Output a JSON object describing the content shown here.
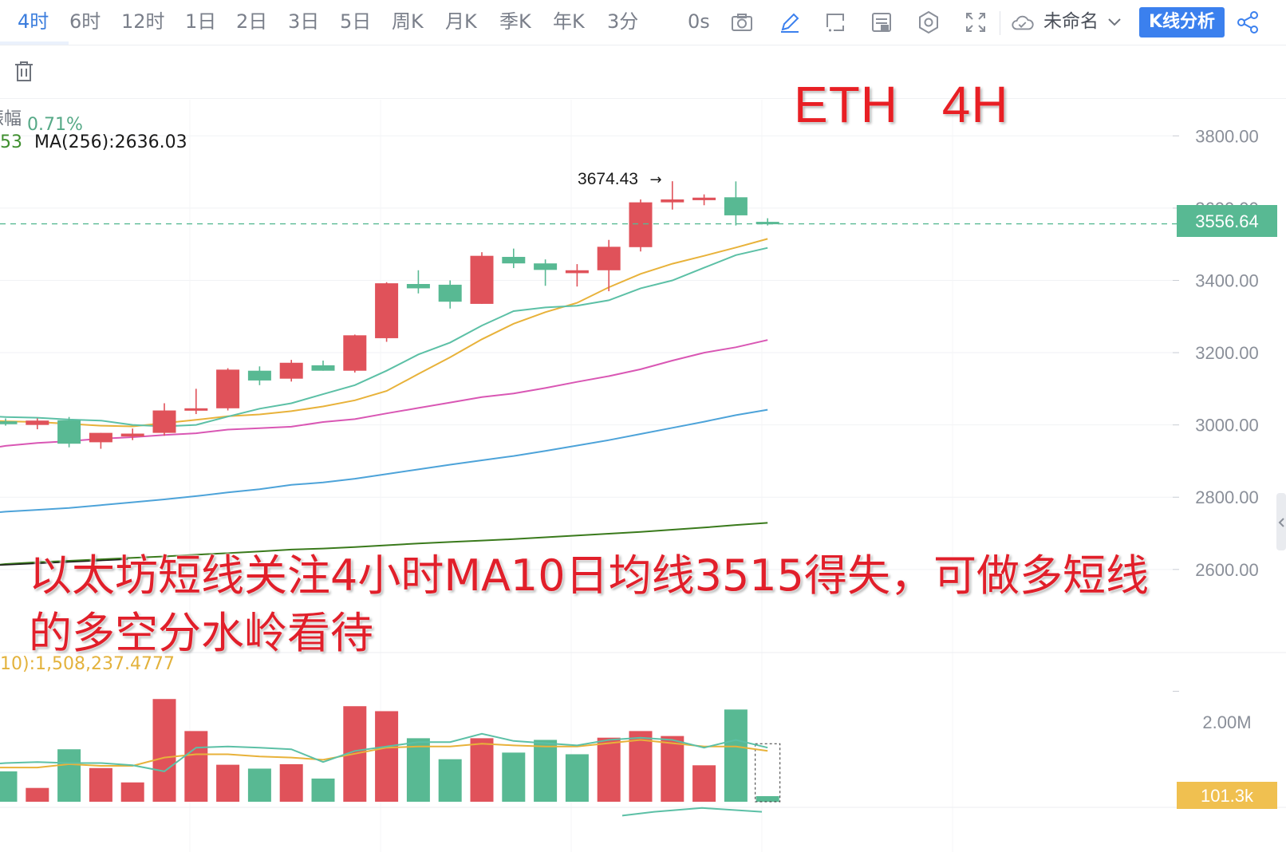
{
  "toolbar": {
    "tabs": [
      "4时",
      "6时",
      "12时",
      "1日",
      "2日",
      "3日",
      "5日",
      "周K",
      "月K",
      "季K",
      "年K",
      "3分"
    ],
    "active_tab": "4时",
    "countdown": "0s",
    "project_name": "未命名",
    "analysis_button": "K线分析",
    "icons": [
      "camera-icon",
      "pencil-icon",
      "crop-icon",
      "indicator-icon",
      "settings-icon",
      "fullscreen-icon",
      "cloud-icon",
      "chevron-down-icon",
      "share-icon",
      "trash-icon"
    ]
  },
  "legend": {
    "amplitude_label": "振幅",
    "amplitude_label_visible": "振幅",
    "amplitude_value": "0.71%",
    "ma_leading_fragment": "53",
    "ma256_label": "MA(256):2636.03"
  },
  "volume_legend": "10):1,508,237.4777",
  "annotation": {
    "title": "ETH    4H",
    "note": "以太坊短线关注4小时MA10日均线3515得失，可做多短线的多空分水岭看待"
  },
  "colors": {
    "up": "#e0525a",
    "down": "#58b993",
    "ma_fast": "#5cc0a6",
    "ma_mid": "#e8b23a",
    "ma_pink": "#d957b4",
    "ma_blue": "#4da3d9",
    "ma_dark": "#3a7a1c",
    "price_tag": "#58b993",
    "volume_tag": "#f0c050",
    "accent": "#3b80ee"
  },
  "chart_data": {
    "type": "candlestick",
    "timeframe": "4H",
    "y_ticks": [
      2600,
      2800,
      3000,
      3200,
      3400,
      3600,
      3800
    ],
    "y_tick_labels": [
      "2600.00",
      "2800.00",
      "3000.00",
      "3200.00",
      "3400.00",
      "3600.00",
      "3800.00"
    ],
    "ylim": [
      2370,
      3900
    ],
    "current_price": 3556.64,
    "current_price_label": "3556.64",
    "high_marker": 3674.43,
    "high_marker_label": "3674.43",
    "candles": [
      {
        "o": 3010,
        "h": 3018,
        "l": 2998,
        "c": 3002
      },
      {
        "o": 3000,
        "h": 3018,
        "l": 2988,
        "c": 3012
      },
      {
        "o": 3013,
        "h": 3022,
        "l": 2938,
        "c": 2948
      },
      {
        "o": 2952,
        "h": 2978,
        "l": 2934,
        "c": 2978
      },
      {
        "o": 2968,
        "h": 2990,
        "l": 2958,
        "c": 2976
      },
      {
        "o": 2978,
        "h": 3060,
        "l": 2970,
        "c": 3040
      },
      {
        "o": 3040,
        "h": 3100,
        "l": 3030,
        "c": 3046
      },
      {
        "o": 3046,
        "h": 3157,
        "l": 3040,
        "c": 3153
      },
      {
        "o": 3150,
        "h": 3162,
        "l": 3110,
        "c": 3123
      },
      {
        "o": 3128,
        "h": 3180,
        "l": 3120,
        "c": 3172
      },
      {
        "o": 3165,
        "h": 3178,
        "l": 3150,
        "c": 3150
      },
      {
        "o": 3150,
        "h": 3250,
        "l": 3145,
        "c": 3248
      },
      {
        "o": 3240,
        "h": 3395,
        "l": 3230,
        "c": 3392
      },
      {
        "o": 3390,
        "h": 3428,
        "l": 3364,
        "c": 3378
      },
      {
        "o": 3388,
        "h": 3400,
        "l": 3322,
        "c": 3341
      },
      {
        "o": 3335,
        "h": 3478,
        "l": 3335,
        "c": 3468
      },
      {
        "o": 3465,
        "h": 3488,
        "l": 3434,
        "c": 3447
      },
      {
        "o": 3447,
        "h": 3458,
        "l": 3385,
        "c": 3429
      },
      {
        "o": 3420,
        "h": 3445,
        "l": 3383,
        "c": 3428
      },
      {
        "o": 3428,
        "h": 3512,
        "l": 3370,
        "c": 3493
      },
      {
        "o": 3492,
        "h": 3624,
        "l": 3480,
        "c": 3616
      },
      {
        "o": 3616,
        "h": 3674.43,
        "l": 3596,
        "c": 3624
      },
      {
        "o": 3622,
        "h": 3638,
        "l": 3608,
        "c": 3629
      },
      {
        "o": 3630,
        "h": 3674,
        "l": 3552,
        "c": 3580
      },
      {
        "o": 3562,
        "h": 3572,
        "l": 3552,
        "c": 3556.64
      }
    ],
    "ma_fast": [
      3022,
      3020,
      3015,
      3012,
      3000,
      2996,
      3000,
      3023,
      3045,
      3060,
      3085,
      3110,
      3150,
      3195,
      3228,
      3275,
      3315,
      3325,
      3330,
      3345,
      3378,
      3400,
      3435,
      3470,
      3490
    ],
    "ma_mid": [
      3010,
      3008,
      3003,
      2998,
      2996,
      3005,
      3014,
      3024,
      3029,
      3038,
      3051,
      3068,
      3094,
      3141,
      3187,
      3237,
      3280,
      3312,
      3338,
      3381,
      3418,
      3446,
      3468,
      3491,
      3515
    ],
    "ma_pink": [
      2942,
      2950,
      2955,
      2962,
      2966,
      2972,
      2977,
      2987,
      2991,
      2995,
      3008,
      3016,
      3032,
      3047,
      3062,
      3077,
      3087,
      3102,
      3119,
      3135,
      3154,
      3178,
      3200,
      3215,
      3235
    ],
    "ma_blue": [
      2760,
      2765,
      2770,
      2778,
      2786,
      2794,
      2803,
      2813,
      2822,
      2834,
      2841,
      2851,
      2864,
      2877,
      2890,
      2902,
      2914,
      2928,
      2943,
      2958,
      2975,
      2992,
      3009,
      3027,
      3042
    ],
    "ma_dark": [
      2615,
      2620,
      2624,
      2628,
      2632,
      2636,
      2641,
      2645,
      2650,
      2655,
      2658,
      2662,
      2667,
      2672,
      2676,
      2680,
      2684,
      2689,
      2694,
      2699,
      2704,
      2710,
      2716,
      2723,
      2729
    ],
    "volume": {
      "values": [
        0.55,
        0.25,
        0.95,
        0.61,
        0.35,
        1.86,
        1.28,
        0.67,
        0.6,
        0.68,
        0.42,
        1.73,
        1.64,
        1.15,
        0.77,
        1.15,
        0.89,
        1.12,
        0.86,
        1.16,
        1.28,
        1.19,
        0.66,
        1.67,
        0.1013
      ],
      "colors": [
        "down",
        "up",
        "down",
        "up",
        "up",
        "up",
        "up",
        "up",
        "down",
        "up",
        "down",
        "up",
        "up",
        "down",
        "down",
        "up",
        "down",
        "down",
        "down",
        "up",
        "up",
        "up",
        "up",
        "down",
        "down"
      ],
      "ma_teal": [
        0.7,
        0.72,
        0.7,
        0.7,
        0.66,
        0.55,
        0.98,
        1.0,
        0.98,
        0.95,
        0.72,
        0.92,
        1.0,
        1.08,
        1.08,
        1.23,
        1.1,
        1.06,
        1.02,
        1.12,
        1.16,
        1.12,
        0.98,
        1.12,
        0.98
      ],
      "ma_orange": [
        0.62,
        0.62,
        0.68,
        0.65,
        0.65,
        0.8,
        0.86,
        0.86,
        0.82,
        0.8,
        0.76,
        0.87,
        0.98,
        1.0,
        1.0,
        1.05,
        1.02,
        1.0,
        1.0,
        1.06,
        1.12,
        1.06,
        1.0,
        1.0,
        0.92
      ],
      "y_tick_label": "2.00M",
      "current_label": "101.3k",
      "ylim": [
        0,
        2.6
      ]
    },
    "sub_indicator": [
      0.38,
      0.42,
      0.46,
      0.42
    ]
  }
}
